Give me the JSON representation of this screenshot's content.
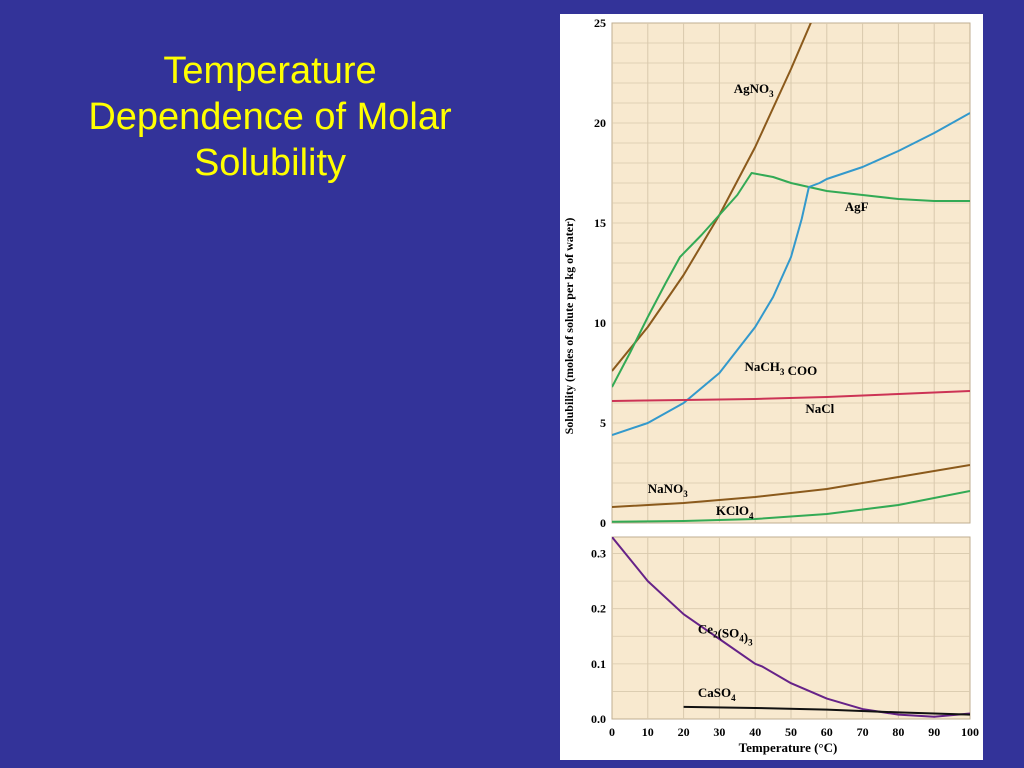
{
  "slide": {
    "title_lines": [
      "Temperature",
      "Dependence of Molar",
      "Solubility"
    ]
  },
  "colors": {
    "background": "#333399",
    "title": "#ffff00",
    "plot_bg": "#f8e9cf",
    "grid": "#d9c9ad",
    "AgNO3": "#8b5a1c",
    "AgF": "#33aa55",
    "NaCH3COO": "#3399cc",
    "NaCl": "#cc3355",
    "NaNO3": "#8b5a1c",
    "KClO4": "#33aa55",
    "Ce2SO43": "#662288",
    "CaSO4": "#111111"
  },
  "chart_data": [
    {
      "type": "line",
      "ylabel": "Solubility (moles of solute per kg of water)",
      "xlim": [
        0,
        100
      ],
      "ylim": [
        0,
        25
      ],
      "yticks": [
        "0",
        "5",
        "10",
        "15",
        "20",
        "25"
      ],
      "grid": true,
      "series": [
        {
          "name": "AgNO3",
          "x": [
            0,
            10,
            20,
            30,
            40,
            50,
            56,
            60
          ],
          "y": [
            7.6,
            9.8,
            12.4,
            15.4,
            18.8,
            22.7,
            25.2,
            27.0
          ]
        },
        {
          "name": "AgF",
          "x": [
            0,
            5,
            10,
            15,
            19,
            25,
            30,
            35,
            39,
            45,
            50,
            55,
            60,
            70,
            80,
            90,
            100
          ],
          "y": [
            6.8,
            8.5,
            10.3,
            12.0,
            13.3,
            14.4,
            15.4,
            16.4,
            17.5,
            17.3,
            17.0,
            16.8,
            16.6,
            16.4,
            16.2,
            16.1,
            16.1
          ]
        },
        {
          "name": "NaCH3COO",
          "x": [
            0,
            10,
            20,
            30,
            40,
            45,
            50,
            53,
            55,
            58,
            60,
            70,
            80,
            90,
            100
          ],
          "y": [
            4.4,
            5.0,
            6.0,
            7.5,
            9.8,
            11.3,
            13.3,
            15.2,
            16.8,
            17.0,
            17.2,
            17.8,
            18.6,
            19.5,
            20.5
          ]
        },
        {
          "name": "NaCl",
          "x": [
            0,
            20,
            40,
            60,
            80,
            100
          ],
          "y": [
            6.1,
            6.15,
            6.2,
            6.3,
            6.45,
            6.6
          ]
        },
        {
          "name": "NaNO3",
          "x": [
            0,
            20,
            40,
            60,
            80,
            100
          ],
          "y": [
            0.8,
            1.0,
            1.3,
            1.7,
            2.3,
            2.9
          ]
        },
        {
          "name": "KClO4",
          "x": [
            0,
            20,
            40,
            60,
            80,
            100
          ],
          "y": [
            0.06,
            0.1,
            0.2,
            0.45,
            0.9,
            1.6
          ]
        }
      ],
      "labels": [
        {
          "text": "AgNO",
          "sub": "3",
          "tail": "",
          "series": "AgNO3",
          "x": 34,
          "y": 21.5
        },
        {
          "text": "AgF",
          "sub": "",
          "tail": "",
          "series": "AgF",
          "x": 65,
          "y": 15.6
        },
        {
          "text": "NaCH",
          "sub": "3",
          "tail": " COO",
          "series": "NaCH3COO",
          "x": 37,
          "y": 7.6
        },
        {
          "text": "NaCl",
          "sub": "",
          "tail": "",
          "series": "NaCl",
          "x": 54,
          "y": 5.5
        },
        {
          "text": "NaNO",
          "sub": "3",
          "tail": "",
          "series": "NaNO3",
          "x": 10,
          "y": 1.5
        },
        {
          "text": "KClO",
          "sub": "4",
          "tail": "",
          "series": "KClO4",
          "x": 29,
          "y": 0.4
        }
      ]
    },
    {
      "type": "line",
      "xlabel": "Temperature (°C)",
      "xlim": [
        0,
        100
      ],
      "ylim": [
        0,
        0.33
      ],
      "xticks": [
        "0",
        "10",
        "20",
        "30",
        "40",
        "50",
        "60",
        "70",
        "80",
        "90",
        "100"
      ],
      "yticks": [
        "0.0",
        "0.1",
        "0.2",
        "0.3"
      ],
      "grid": true,
      "series": [
        {
          "name": "Ce2(SO4)3",
          "x": [
            0,
            10,
            20,
            30,
            40,
            42,
            50,
            60,
            70,
            80,
            90,
            100
          ],
          "y": [
            0.33,
            0.25,
            0.19,
            0.145,
            0.1,
            0.095,
            0.065,
            0.037,
            0.018,
            0.008,
            0.004,
            0.01
          ]
        },
        {
          "name": "CaSO4",
          "x": [
            20,
            40,
            60,
            80,
            100
          ],
          "y": [
            0.022,
            0.02,
            0.017,
            0.012,
            0.008
          ]
        }
      ],
      "labels": [
        {
          "text": "Ce",
          "sub": "2",
          "tail": "(SO",
          "sub2": "4",
          "tail2": ")",
          "sub3": "3",
          "series": "Ce2SO43",
          "x": 24,
          "y": 0.155
        },
        {
          "text": "CaSO",
          "sub": "4",
          "tail": "",
          "series": "CaSO4",
          "x": 24,
          "y": 0.04
        }
      ]
    }
  ]
}
